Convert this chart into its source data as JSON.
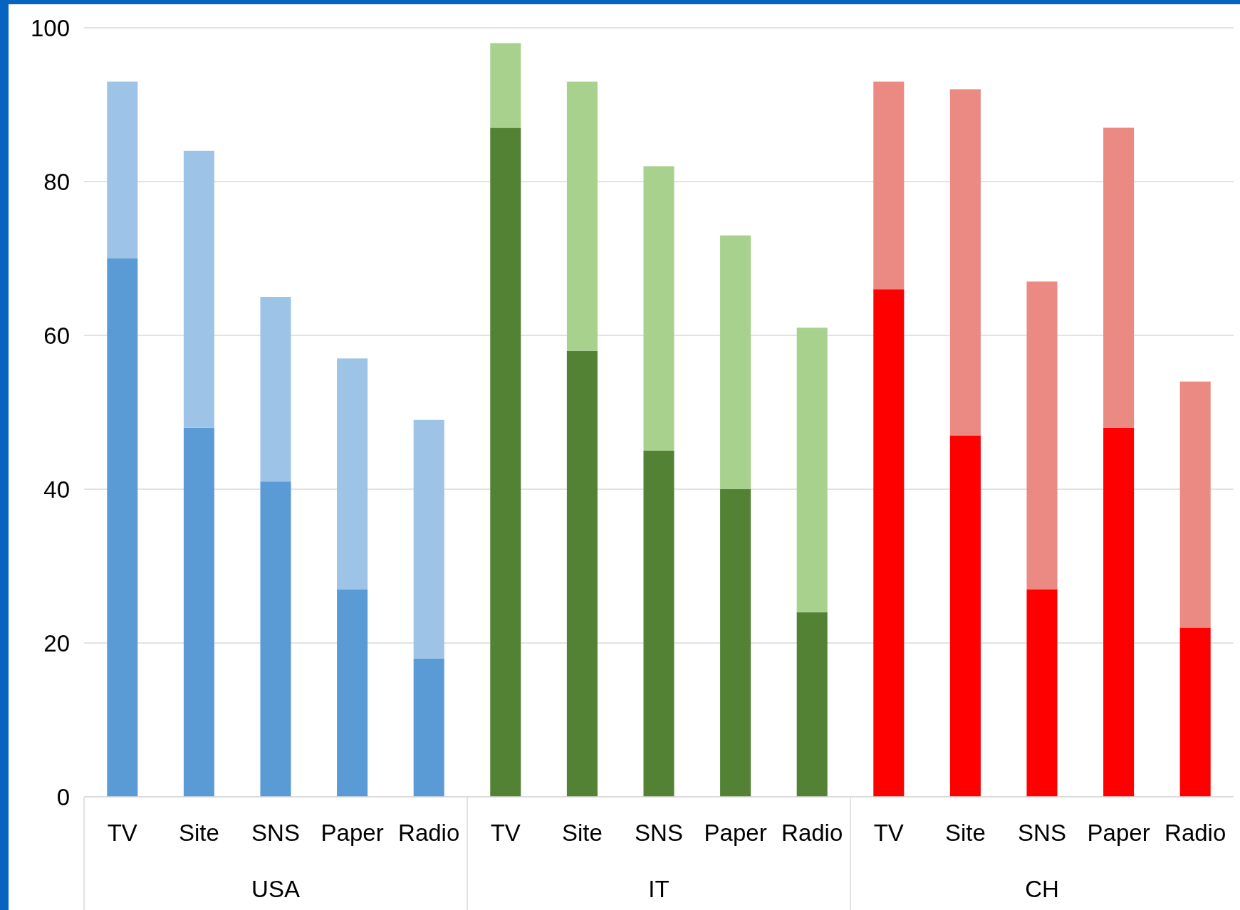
{
  "chart_data": [
    {
      "type": "bar",
      "stacked": true,
      "xlabel": "USA",
      "categories": [
        "TV",
        "Site",
        "SNS",
        "Paper",
        "Radio"
      ],
      "series": [
        {
          "color": "#5b9bd5",
          "values": [
            70,
            48,
            41,
            27,
            18
          ]
        },
        {
          "color": "#9dc3e6",
          "values": [
            23,
            36,
            24,
            30,
            31
          ]
        }
      ],
      "ylim": [
        0,
        100
      ],
      "yticks": [
        0,
        20,
        40,
        60,
        80,
        100
      ],
      "grid": "y"
    },
    {
      "type": "bar",
      "stacked": true,
      "xlabel": "IT",
      "categories": [
        "TV",
        "Site",
        "SNS",
        "Paper",
        "Radio"
      ],
      "series": [
        {
          "color": "#548235",
          "values": [
            87,
            58,
            45,
            40,
            24
          ]
        },
        {
          "color": "#a9d18e",
          "values": [
            11,
            35,
            37,
            33,
            37
          ]
        }
      ],
      "ylim": [
        0,
        100
      ],
      "yticks": [
        0,
        20,
        40,
        60,
        80,
        100
      ],
      "grid": "y",
      "tick_labels": "x"
    },
    {
      "type": "bar",
      "stacked": true,
      "xlabel": "CH",
      "categories": [
        "TV",
        "Site",
        "SNS",
        "Paper",
        "Radio"
      ],
      "series": [
        {
          "color": "#ff0000",
          "values": [
            66,
            47,
            27,
            48,
            22
          ]
        },
        {
          "color": "#ea8a82",
          "values": [
            27,
            45,
            40,
            39,
            32
          ]
        }
      ],
      "ylim": [
        0,
        100
      ],
      "yticks": [
        0,
        20,
        40,
        60,
        80,
        100
      ],
      "grid": "y",
      "tick_labels": "x"
    }
  ]
}
